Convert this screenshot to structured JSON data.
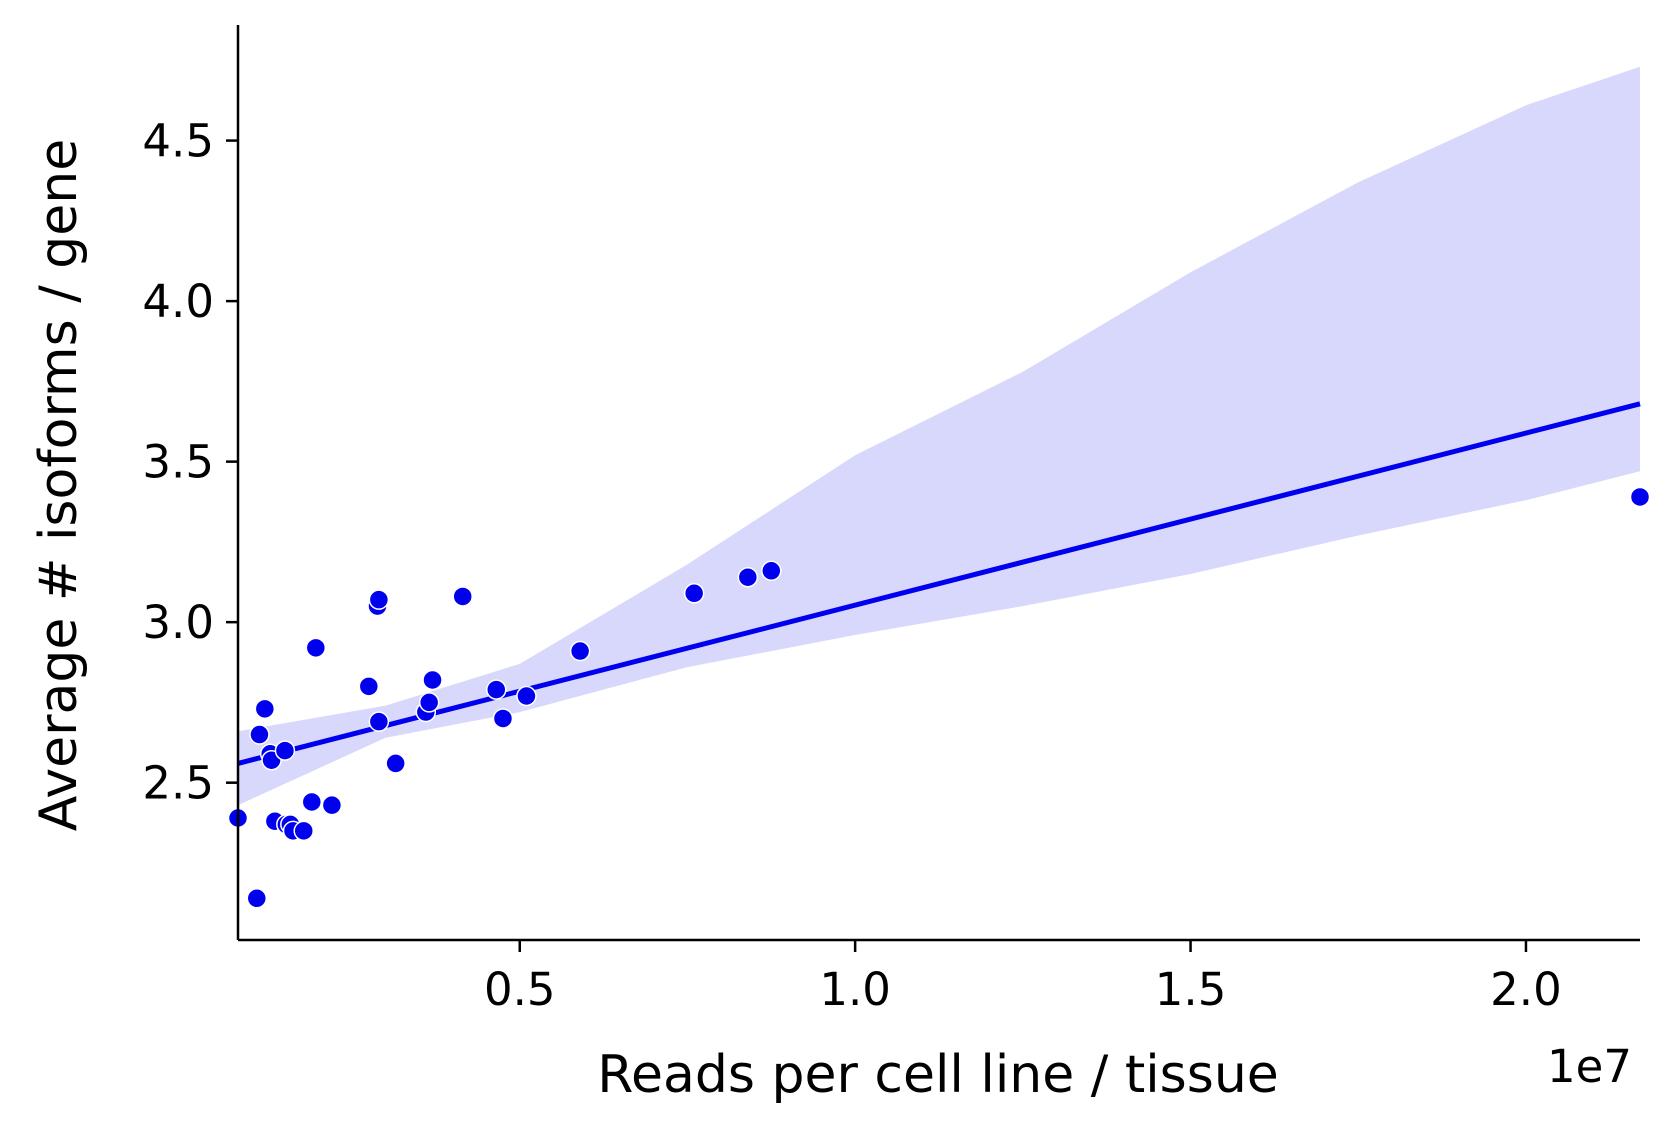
{
  "chart_data": {
    "type": "scatter",
    "xlabel": "Reads per cell line / tissue",
    "ylabel": "Average # isoforms / gene",
    "x_offset_label": "1e7",
    "xlim": [
      0.08,
      2.17
    ],
    "ylim": [
      2.01,
      4.86
    ],
    "x_ticks": [
      {
        "value": 0.5,
        "label": "0.5"
      },
      {
        "value": 1.0,
        "label": "1.0"
      },
      {
        "value": 1.5,
        "label": "1.5"
      },
      {
        "value": 2.0,
        "label": "2.0"
      }
    ],
    "y_ticks": [
      {
        "value": 2.5,
        "label": "2.5"
      },
      {
        "value": 3.0,
        "label": "3.0"
      },
      {
        "value": 3.5,
        "label": "3.5"
      },
      {
        "value": 4.0,
        "label": "4.0"
      },
      {
        "value": 4.5,
        "label": "4.5"
      }
    ],
    "grid": false,
    "colors": {
      "points": "#0000ee",
      "line": "#0000ee",
      "band": "#d8d8fc",
      "axis": "#000000"
    },
    "series": [
      {
        "points": [
          {
            "x": 0.08,
            "y": 2.39
          },
          {
            "x": 0.108,
            "y": 2.14
          },
          {
            "x": 0.112,
            "y": 2.65
          },
          {
            "x": 0.12,
            "y": 2.73
          },
          {
            "x": 0.128,
            "y": 2.59
          },
          {
            "x": 0.13,
            "y": 2.57
          },
          {
            "x": 0.135,
            "y": 2.38
          },
          {
            "x": 0.15,
            "y": 2.6
          },
          {
            "x": 0.152,
            "y": 2.37
          },
          {
            "x": 0.158,
            "y": 2.37
          },
          {
            "x": 0.162,
            "y": 2.35
          },
          {
            "x": 0.178,
            "y": 2.35
          },
          {
            "x": 0.19,
            "y": 2.44
          },
          {
            "x": 0.196,
            "y": 2.92
          },
          {
            "x": 0.22,
            "y": 2.43
          },
          {
            "x": 0.275,
            "y": 2.8
          },
          {
            "x": 0.288,
            "y": 3.05
          },
          {
            "x": 0.29,
            "y": 3.07
          },
          {
            "x": 0.29,
            "y": 2.69
          },
          {
            "x": 0.315,
            "y": 2.56
          },
          {
            "x": 0.36,
            "y": 2.72
          },
          {
            "x": 0.365,
            "y": 2.75
          },
          {
            "x": 0.37,
            "y": 2.82
          },
          {
            "x": 0.415,
            "y": 3.08
          },
          {
            "x": 0.465,
            "y": 2.79
          },
          {
            "x": 0.475,
            "y": 2.7
          },
          {
            "x": 0.51,
            "y": 2.77
          },
          {
            "x": 0.59,
            "y": 2.91
          },
          {
            "x": 0.76,
            "y": 3.09
          },
          {
            "x": 0.84,
            "y": 3.14
          },
          {
            "x": 0.875,
            "y": 3.16
          },
          {
            "x": 2.17,
            "y": 3.39
          }
        ]
      }
    ],
    "regression": {
      "x": [
        0.08,
        2.17
      ],
      "y": [
        2.56,
        3.68
      ]
    },
    "confidence_band": {
      "x": [
        0.08,
        0.3,
        0.5,
        0.75,
        1.0,
        1.25,
        1.5,
        1.75,
        2.0,
        2.17
      ],
      "upper": [
        2.66,
        2.74,
        2.87,
        3.18,
        3.52,
        3.78,
        4.09,
        4.37,
        4.61,
        4.73
      ],
      "lower": [
        2.43,
        2.64,
        2.72,
        2.86,
        2.96,
        3.05,
        3.15,
        3.27,
        3.38,
        3.47
      ]
    }
  }
}
